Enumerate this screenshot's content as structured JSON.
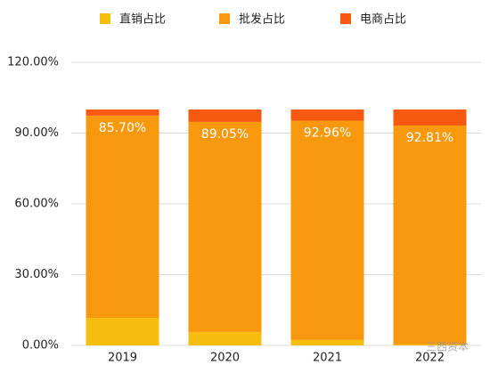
{
  "chart_data": {
    "type": "stacked-bar",
    "categories": [
      "2019",
      "2020",
      "2021",
      "2022"
    ],
    "series": [
      {
        "name": "直销占比",
        "color": "#f6bd0f",
        "values": [
          11.7,
          5.7,
          2.3,
          0.4
        ]
      },
      {
        "name": "批发占比",
        "color": "#f7980d",
        "values": [
          85.7,
          89.05,
          92.96,
          92.81
        ],
        "value_labels": [
          "85.70%",
          "89.05%",
          "92.96%",
          "92.81%"
        ]
      },
      {
        "name": "电商占比",
        "color": "#f6590f",
        "values": [
          2.6,
          5.25,
          4.74,
          6.79
        ]
      }
    ],
    "ylim": [
      0,
      120
    ],
    "yticks": [
      {
        "value": 0,
        "label": "0.00%"
      },
      {
        "value": 30,
        "label": "30.00%"
      },
      {
        "value": 60,
        "label": "60.00%"
      },
      {
        "value": 90,
        "label": "90.00%"
      },
      {
        "value": 120,
        "label": "120.00%"
      }
    ],
    "grid": true,
    "legend": "top",
    "watermark": "三西资本"
  }
}
